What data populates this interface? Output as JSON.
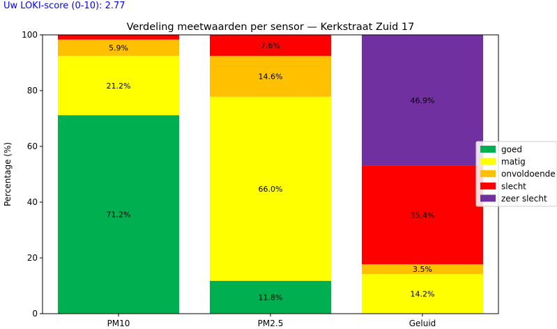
{
  "score_text": "Uw LOKI-score (0-10): 2.77",
  "chart_data": {
    "type": "bar",
    "stacked": true,
    "title": "Verdeling meetwaarden per sensor — Kerkstraat Zuid 17",
    "xlabel": "",
    "ylabel": "Percentage (%)",
    "ylim": [
      0,
      100
    ],
    "yticks": [
      0,
      20,
      40,
      60,
      80,
      100
    ],
    "categories": [
      "PM10",
      "PM2.5",
      "Geluid"
    ],
    "series": [
      {
        "name": "goed",
        "color": "#00b050",
        "values": [
          71.2,
          11.8,
          0
        ]
      },
      {
        "name": "matig",
        "color": "#ffff00",
        "values": [
          21.2,
          66.0,
          14.2
        ]
      },
      {
        "name": "onvoldoende",
        "color": "#ffc000",
        "values": [
          5.9,
          14.6,
          3.5
        ]
      },
      {
        "name": "slecht",
        "color": "#ff0000",
        "values": [
          1.7,
          7.6,
          35.4
        ]
      },
      {
        "name": "zeer slecht",
        "color": "#7030a0",
        "values": [
          0,
          0,
          46.9
        ]
      }
    ],
    "data_labels": [
      [
        "71.2%",
        "21.2%",
        "5.9%",
        "",
        ""
      ],
      [
        "11.8%",
        "66.0%",
        "14.6%",
        "7.6%",
        ""
      ],
      [
        "",
        "14.2%",
        "3.5%",
        "35.4%",
        "46.9%"
      ]
    ],
    "legend_position": "right"
  }
}
